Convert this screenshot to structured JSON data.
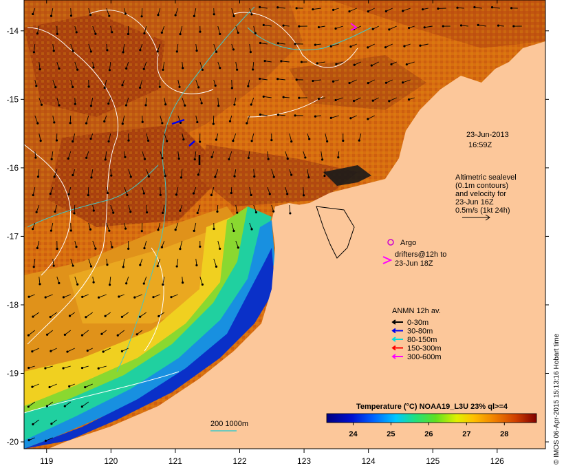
{
  "map": {
    "type": "sea-surface-temperature-map",
    "lon_ticks": [
      119,
      120,
      121,
      122,
      123,
      124,
      125,
      126
    ],
    "lat_ticks": [
      -14,
      -15,
      -16,
      -17,
      -18,
      -19,
      -20
    ],
    "lon_range": [
      118.65,
      126.75
    ],
    "lat_range": [
      -20.1,
      -13.55
    ]
  },
  "annotations": {
    "date": "23-Jun-2013",
    "time": "16:59Z",
    "sealevel_lines": [
      "Altimetric sealevel",
      "(0.1m contours)",
      "and velocity for",
      "23-Jun 16Z",
      "0.5m/s (1kt 24h)"
    ],
    "argo_label": "Argo",
    "drifters_line1": "drifters@12h to",
    "drifters_line2": "23-Jun 18Z",
    "anmn_title": "ANMN 12h av.",
    "anmn_items": [
      {
        "label": "0-30m",
        "color": "#000000"
      },
      {
        "label": "30-80m",
        "color": "#0000ee"
      },
      {
        "label": "80-150m",
        "color": "#00dddd"
      },
      {
        "label": "150-300m",
        "color": "#ff0000"
      },
      {
        "label": "300-600m",
        "color": "#ff00ff"
      }
    ],
    "bathy_label": "200  1000m"
  },
  "colorbar": {
    "title": "Temperature (°C) NOAA19_L3U 23% ql>=4",
    "ticks": [
      24,
      25,
      26,
      27,
      28
    ],
    "range": [
      23.3,
      28.85
    ]
  },
  "credit": "© IMOS 06-Apr-2015 15:13:16 Hobart time",
  "colors": {
    "land": "#fcc79a",
    "argo": "#cc00cc",
    "drifter": "#ff00ff",
    "contour": "#ffffff",
    "bathy": "#40c8c8"
  }
}
